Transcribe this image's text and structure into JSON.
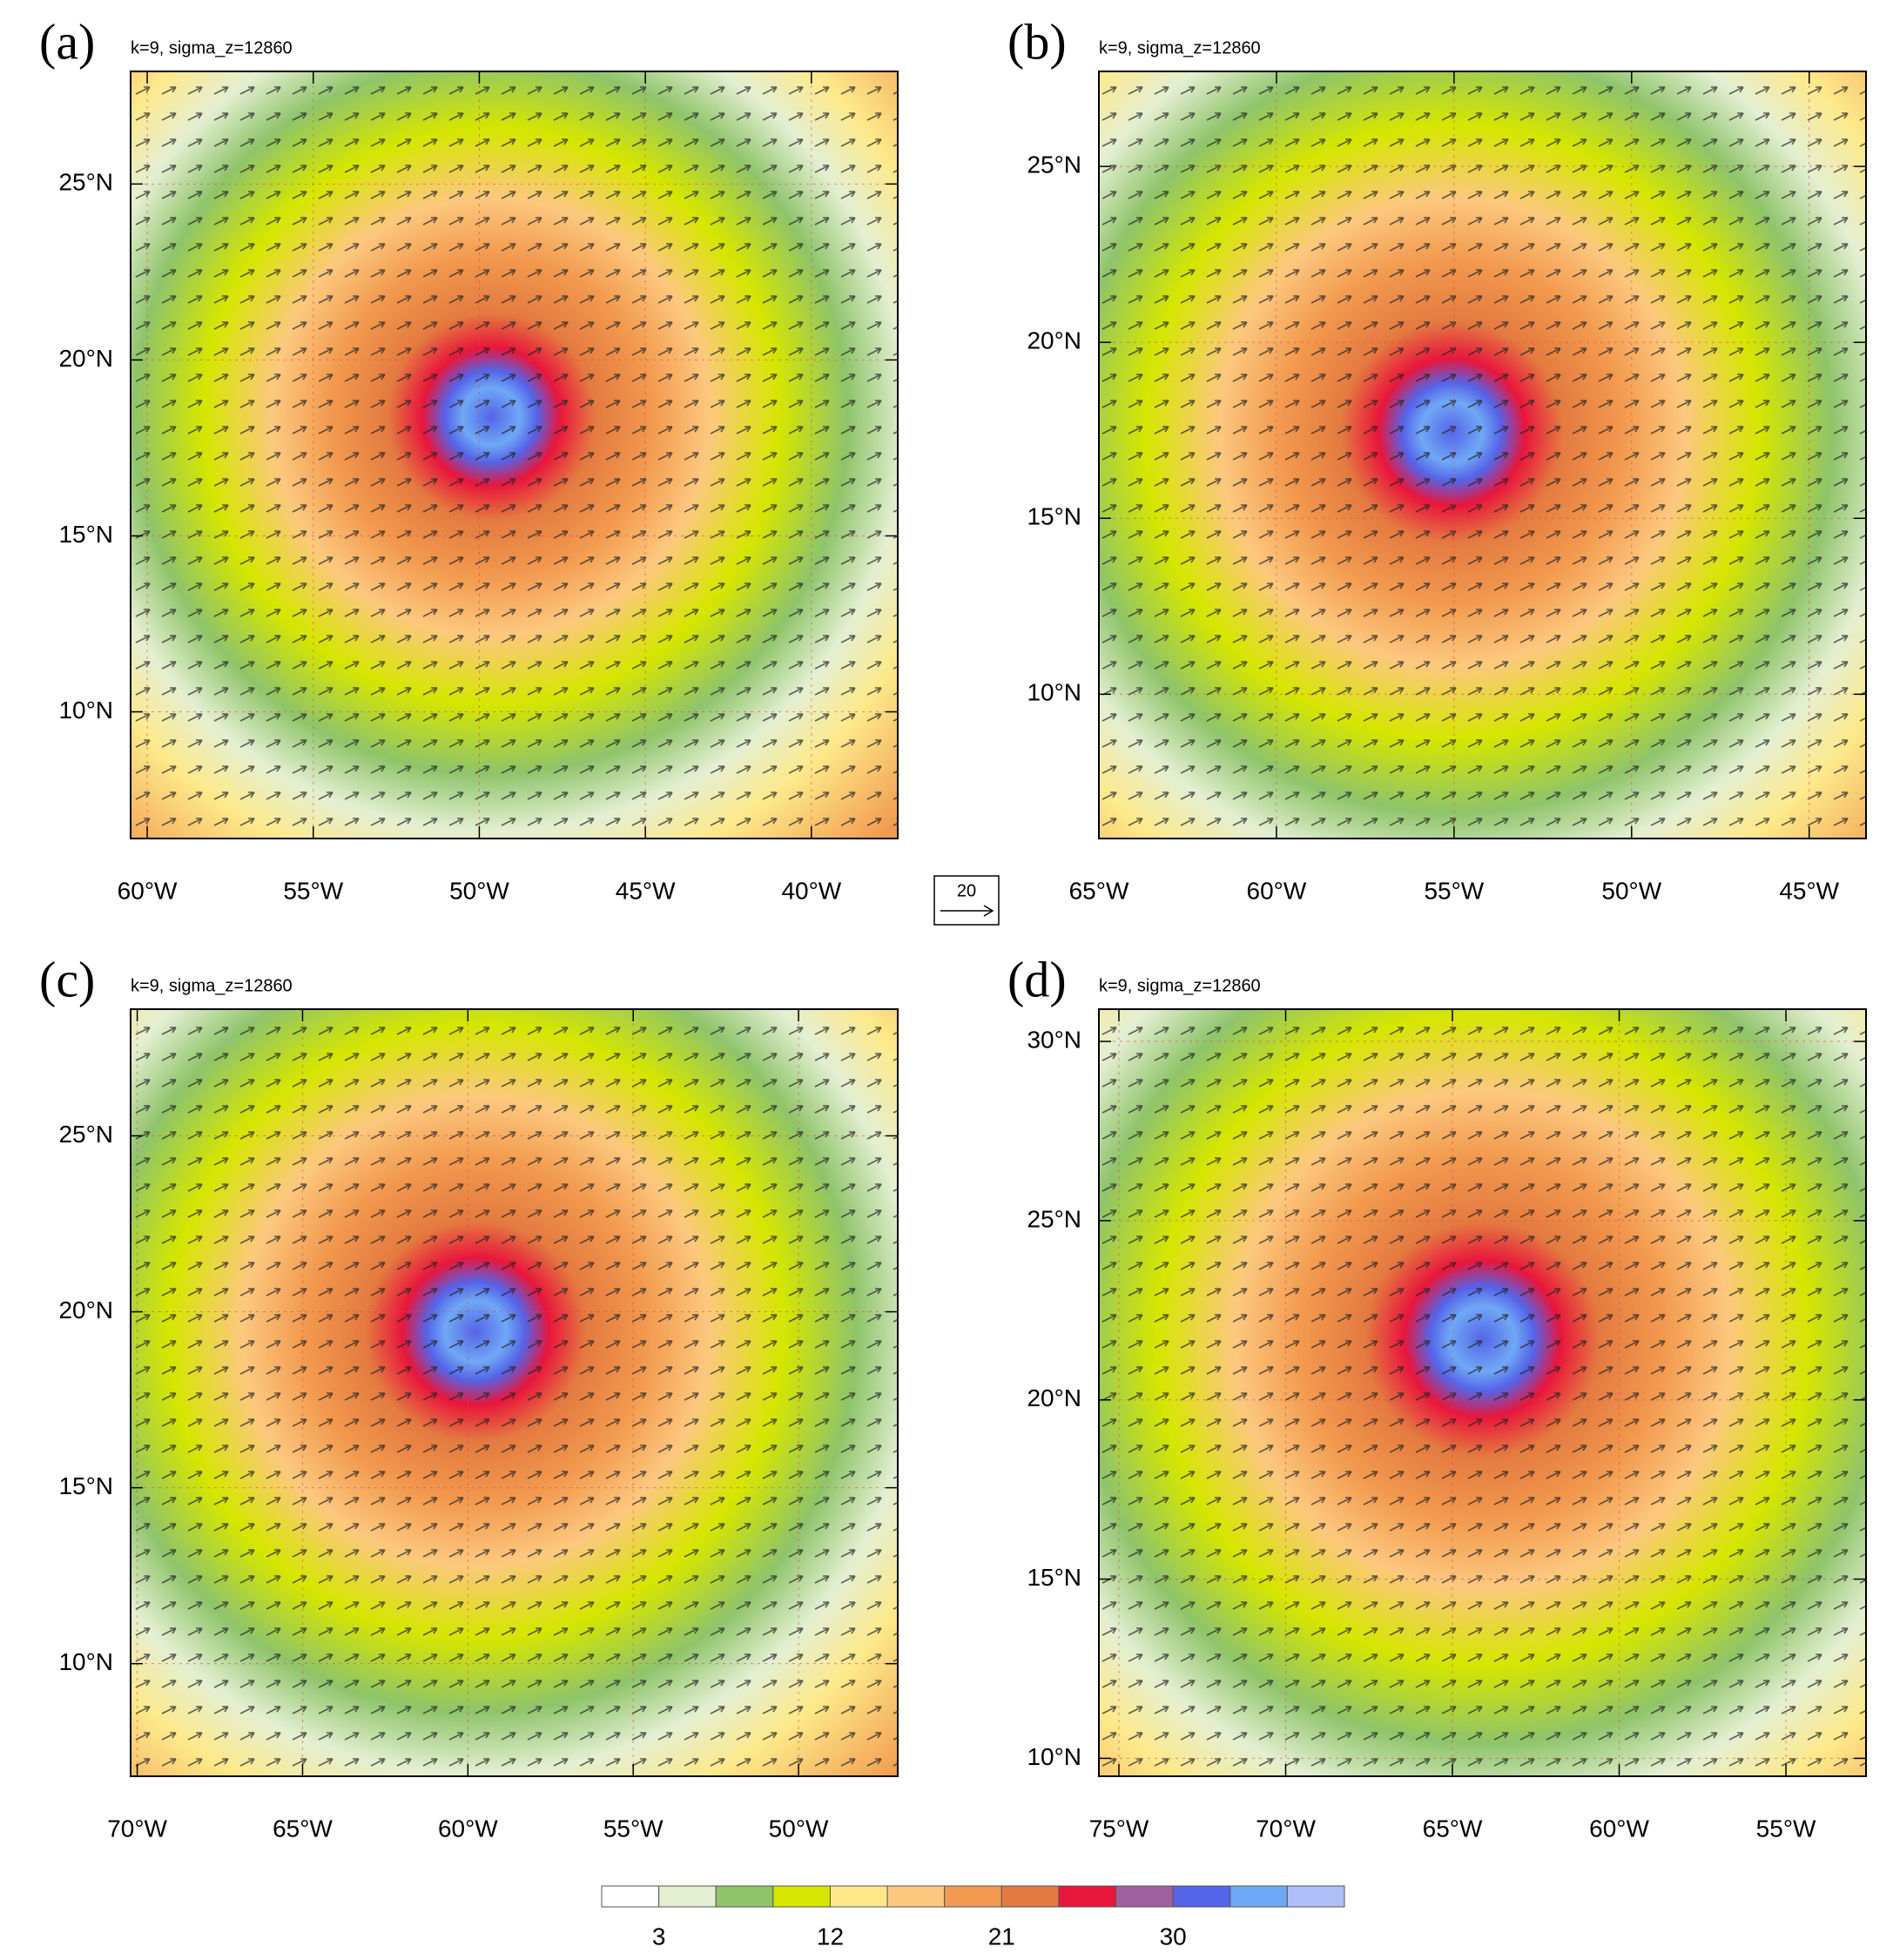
{
  "chart_data": [
    {
      "type": "map",
      "panel_label": "(a)",
      "subtitle": "k=9, sigma_z=12860",
      "xlim": [
        -60.5,
        -37.4
      ],
      "ylim": [
        6.4,
        28.2
      ],
      "grid": true,
      "xticks": [
        {
          "value": -60,
          "label": "60°W"
        },
        {
          "value": -55,
          "label": "55°W"
        },
        {
          "value": -50,
          "label": "50°W"
        },
        {
          "value": -45,
          "label": "45°W"
        },
        {
          "value": -40,
          "label": "40°W"
        }
      ],
      "yticks": [
        {
          "value": 10,
          "label": "10°N"
        },
        {
          "value": 15,
          "label": "15°N"
        },
        {
          "value": 20,
          "label": "20°N"
        },
        {
          "value": 25,
          "label": "25°N"
        }
      ]
    },
    {
      "type": "map",
      "panel_label": "(b)",
      "subtitle": "k=9, sigma_z=12860",
      "xlim": [
        -65.0,
        -43.4
      ],
      "ylim": [
        5.9,
        27.7
      ],
      "grid": true,
      "xticks": [
        {
          "value": -65,
          "label": "65°W"
        },
        {
          "value": -60,
          "label": "60°W"
        },
        {
          "value": -55,
          "label": "55°W"
        },
        {
          "value": -50,
          "label": "50°W"
        },
        {
          "value": -45,
          "label": "45°W"
        }
      ],
      "yticks": [
        {
          "value": 10,
          "label": "10°N"
        },
        {
          "value": 15,
          "label": "15°N"
        },
        {
          "value": 20,
          "label": "20°N"
        },
        {
          "value": 25,
          "label": "25°N"
        }
      ]
    },
    {
      "type": "map",
      "panel_label": "(c)",
      "subtitle": "k=9, sigma_z=12860",
      "xlim": [
        -70.2,
        -47.0
      ],
      "ylim": [
        6.8,
        28.6
      ],
      "grid": true,
      "xticks": [
        {
          "value": -70,
          "label": "70°W"
        },
        {
          "value": -65,
          "label": "65°W"
        },
        {
          "value": -60,
          "label": "60°W"
        },
        {
          "value": -55,
          "label": "55°W"
        },
        {
          "value": -50,
          "label": "50°W"
        }
      ],
      "yticks": [
        {
          "value": 10,
          "label": "10°N"
        },
        {
          "value": 15,
          "label": "15°N"
        },
        {
          "value": 20,
          "label": "20°N"
        },
        {
          "value": 25,
          "label": "25°N"
        }
      ]
    },
    {
      "type": "map",
      "panel_label": "(d)",
      "subtitle": "k=9, sigma_z=12860",
      "xlim": [
        -75.6,
        -52.6
      ],
      "ylim": [
        9.5,
        30.9
      ],
      "grid": true,
      "xticks": [
        {
          "value": -75,
          "label": "75°W"
        },
        {
          "value": -70,
          "label": "70°W"
        },
        {
          "value": -65,
          "label": "65°W"
        },
        {
          "value": -60,
          "label": "60°W"
        },
        {
          "value": -55,
          "label": "55°W"
        }
      ],
      "yticks": [
        {
          "value": 10,
          "label": "10°N"
        },
        {
          "value": 15,
          "label": "15°N"
        },
        {
          "value": 20,
          "label": "20°N"
        },
        {
          "value": 25,
          "label": "25°N"
        },
        {
          "value": 30,
          "label": "30°N"
        }
      ]
    }
  ],
  "reference_vector": 20,
  "colorbar": {
    "lim": [
      0,
      39
    ],
    "ticks": [
      3,
      12,
      21,
      30
    ],
    "colors": [
      "#ffffff",
      "#e4efd2",
      "#8fc46a",
      "#d6e600",
      "#fde98a",
      "#fcc87e",
      "#f29a4f",
      "#e47a40",
      "#e8163c",
      "#a0609e",
      "#5564e8",
      "#6fa8f5",
      "#aebef6"
    ]
  }
}
